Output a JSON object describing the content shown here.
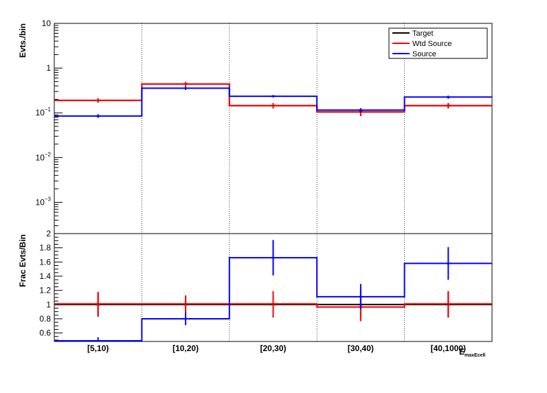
{
  "chart_data": [
    {
      "panel": "top",
      "type": "step",
      "ylabel": "Evts./bin",
      "yscale": "log",
      "ylim": [
        0.0002,
        10
      ],
      "yticks": [
        {
          "value": 10,
          "base": "10",
          "exp": ""
        },
        {
          "value": 1,
          "base": "1",
          "exp": ""
        },
        {
          "value": 0.1,
          "base": "10",
          "exp": "−1"
        },
        {
          "value": 0.01,
          "base": "10",
          "exp": "−2"
        },
        {
          "value": 0.001,
          "base": "10",
          "exp": "−3"
        }
      ],
      "categories": [
        "[5,10)",
        "[10,20)",
        "[20,30)",
        "[30,40)",
        "[40,1000)"
      ],
      "series": [
        {
          "name": "Target",
          "color": "#000000",
          "values": [
            0.19,
            0.44,
            0.145,
            0.105,
            0.145
          ],
          "errors": [
            0.02,
            0.05,
            0.02,
            0.02,
            0.02
          ]
        },
        {
          "name": "Wtd Source",
          "color": "#ff0000",
          "values": [
            0.19,
            0.44,
            0.145,
            0.105,
            0.145
          ],
          "errors": [
            0.02,
            0.05,
            0.02,
            0.02,
            0.02
          ]
        },
        {
          "name": "Source",
          "color": "#0000ff",
          "values": [
            0.085,
            0.355,
            0.235,
            0.115,
            0.225
          ],
          "errors": [
            0.008,
            0.03,
            0.015,
            0.012,
            0.018
          ]
        }
      ],
      "legend": {
        "placement": "top-right"
      }
    },
    {
      "panel": "bottom",
      "type": "step",
      "ylabel": "Frac Evts/Bin",
      "xlabel": "E",
      "xlabel_sub": "maxEcell",
      "yscale": "linear",
      "ylim": [
        0.48,
        2.0
      ],
      "yticks": [
        0.6,
        0.8,
        1,
        1.2,
        1.4,
        1.6,
        1.8,
        2
      ],
      "ytick_labels": [
        "0.6",
        "0.8",
        "1",
        "1.2",
        "1.4",
        "1.6",
        "1.8",
        "2"
      ],
      "categories": [
        "[5,10)",
        "[10,20)",
        "[20,30)",
        "[30,40)",
        "[40,1000)"
      ],
      "series": [
        {
          "name": "Target",
          "color": "#000000",
          "values": [
            1.0,
            1.0,
            1.0,
            1.0,
            1.0
          ],
          "errors": [
            0.17,
            0.12,
            0.18,
            0.2,
            0.18
          ]
        },
        {
          "name": "Wtd Source",
          "color": "#ff0000",
          "values": [
            1.01,
            1.01,
            1.01,
            0.965,
            1.01
          ],
          "errors": [
            0.17,
            0.12,
            0.18,
            0.2,
            0.18
          ]
        },
        {
          "name": "Source",
          "color": "#0000ff",
          "values": [
            0.49,
            0.8,
            1.66,
            1.11,
            1.58
          ],
          "errors": [
            0.05,
            0.09,
            0.25,
            0.18,
            0.23
          ]
        }
      ]
    }
  ]
}
